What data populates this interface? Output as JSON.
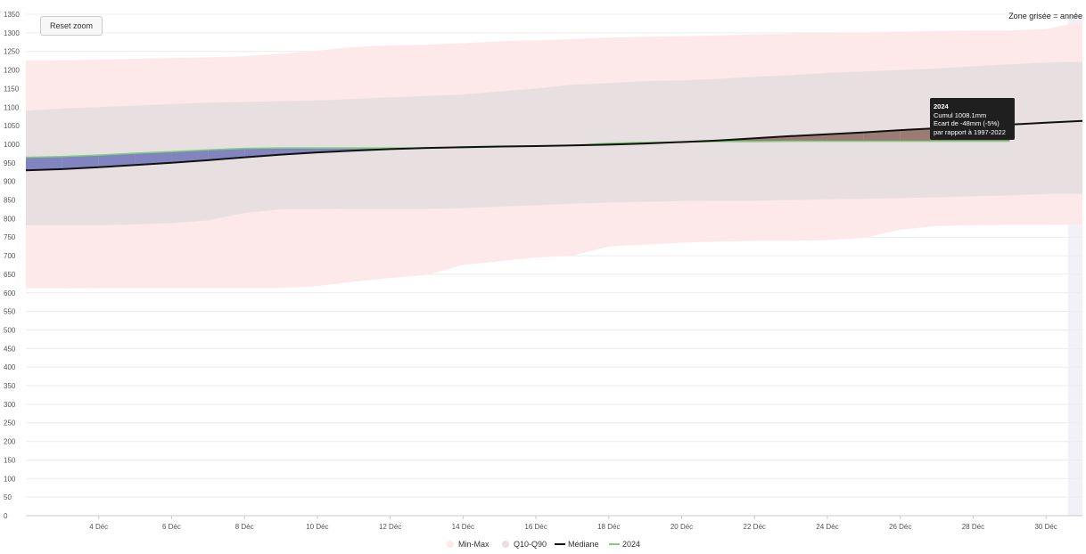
{
  "reset_zoom_label": "Reset zoom",
  "note_text": "Zone grisée = année",
  "tooltip": {
    "title": "2024",
    "line1": "Cumul 1008.1mm",
    "line2": "Ecart de -48mm (-5%)",
    "line3": "par rapport à 1997-2022"
  },
  "colors": {
    "minmax": "#fde8ea",
    "q10q90": "#e8e0e0",
    "median": "#111111",
    "series2024": "#7ed07e",
    "below": "#6f73b8",
    "above": "#8c6a62",
    "highlight": "#f1f1f7"
  },
  "chart_data": {
    "type": "area",
    "title": "",
    "xlabel": "",
    "ylabel": "",
    "ylim": [
      0,
      1350
    ],
    "yticks": [
      0,
      50,
      100,
      150,
      200,
      250,
      300,
      350,
      400,
      450,
      500,
      550,
      600,
      650,
      700,
      750,
      800,
      850,
      900,
      950,
      1000,
      1050,
      1100,
      1150,
      1200,
      1250,
      1300,
      1350
    ],
    "x_day_range": [
      2,
      31
    ],
    "xticks": [
      {
        "day": 4,
        "label": "4 Déc"
      },
      {
        "day": 6,
        "label": "6 Déc"
      },
      {
        "day": 8,
        "label": "8 Déc"
      },
      {
        "day": 10,
        "label": "10 Déc"
      },
      {
        "day": 12,
        "label": "12 Déc"
      },
      {
        "day": 14,
        "label": "14 Déc"
      },
      {
        "day": 16,
        "label": "16 Déc"
      },
      {
        "day": 18,
        "label": "18 Déc"
      },
      {
        "day": 20,
        "label": "20 Déc"
      },
      {
        "day": 22,
        "label": "22 Déc"
      },
      {
        "day": 24,
        "label": "24 Déc"
      },
      {
        "day": 26,
        "label": "26 Déc"
      },
      {
        "day": 28,
        "label": "28 Déc"
      },
      {
        "day": 30,
        "label": "30 Déc"
      }
    ],
    "days": [
      2,
      3,
      4,
      5,
      6,
      7,
      8,
      9,
      10,
      11,
      12,
      13,
      14,
      15,
      16,
      17,
      18,
      19,
      20,
      21,
      22,
      23,
      24,
      25,
      26,
      27,
      28,
      29,
      30,
      31
    ],
    "series": [
      {
        "name": "Min-Max",
        "kind": "range",
        "low": [
          612,
          612,
          613,
          613,
          613,
          613,
          613,
          613,
          618,
          630,
          640,
          648,
          675,
          685,
          695,
          700,
          725,
          730,
          735,
          738,
          740,
          740,
          742,
          748,
          770,
          780,
          782,
          783,
          783,
          784
        ],
        "high": [
          1225,
          1226,
          1228,
          1230,
          1232,
          1234,
          1237,
          1243,
          1252,
          1262,
          1266,
          1268,
          1272,
          1277,
          1280,
          1283,
          1287,
          1289,
          1291,
          1293,
          1296,
          1298,
          1300,
          1301,
          1303,
          1305,
          1306,
          1306,
          1310,
          1330
        ]
      },
      {
        "name": "Q10-Q90",
        "kind": "range",
        "low": [
          782,
          782,
          782,
          784,
          788,
          795,
          815,
          825,
          825,
          826,
          826,
          826,
          828,
          832,
          836,
          840,
          843,
          845,
          847,
          848,
          848,
          850,
          852,
          853,
          855,
          857,
          860,
          862,
          866,
          866
        ],
        "high": [
          1090,
          1096,
          1100,
          1104,
          1108,
          1112,
          1114,
          1116,
          1118,
          1122,
          1126,
          1130,
          1134,
          1142,
          1150,
          1160,
          1165,
          1170,
          1172,
          1176,
          1182,
          1186,
          1192,
          1196,
          1200,
          1204,
          1210,
          1215,
          1220,
          1222
        ]
      },
      {
        "name": "Médiane",
        "kind": "line",
        "values": [
          930,
          933,
          938,
          944,
          950,
          957,
          965,
          972,
          978,
          983,
          987,
          990,
          992,
          994,
          995,
          997,
          999,
          1002,
          1006,
          1010,
          1016,
          1022,
          1027,
          1032,
          1038,
          1043,
          1048,
          1053,
          1058,
          1063
        ]
      },
      {
        "name": "2024",
        "kind": "line",
        "values": [
          965,
          967,
          971,
          976,
          980,
          985,
          989,
          990,
          990,
          990,
          990,
          990,
          991,
          993,
          995,
          997,
          1003,
          1005,
          1006,
          1007,
          1007,
          1008,
          1008,
          1008,
          1008.1,
          1008.1,
          1008.1,
          1008.1,
          null,
          null
        ]
      }
    ],
    "legend": [
      "Min-Max",
      "Q10-Q90",
      "Médiane",
      "2024"
    ],
    "legend_position": "bottom",
    "grid": true
  }
}
